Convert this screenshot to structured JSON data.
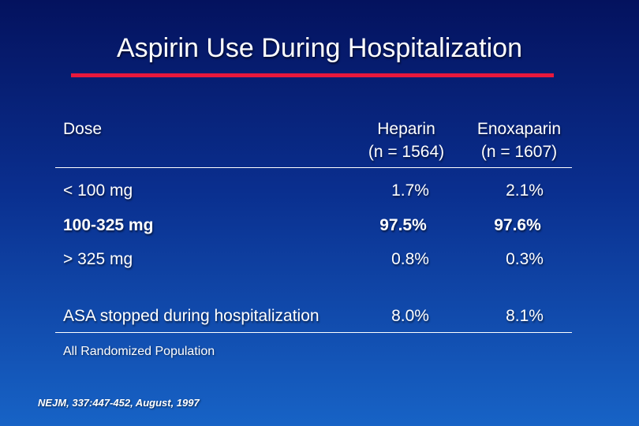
{
  "slide": {
    "title": "Aspirin Use During Hospitalization",
    "accent_color": "#e8183c"
  },
  "table": {
    "header": {
      "dose": "Dose",
      "heparin_name": "Heparin",
      "heparin_n": "(n = 1564)",
      "enoxaparin_name": "Enoxaparin",
      "enoxaparin_n": "(n = 1607)"
    },
    "rows": [
      {
        "dose": "< 100 mg",
        "heparin": "1.7%",
        "enoxaparin": "2.1%"
      },
      {
        "dose": "100-325 mg",
        "heparin": "97.5%",
        "enoxaparin": "97.6%"
      },
      {
        "dose": "> 325 mg",
        "heparin": "0.8%",
        "enoxaparin": "0.3%"
      },
      {
        "dose": "ASA stopped during hospitalization",
        "heparin": "8.0%",
        "enoxaparin": "8.1%"
      }
    ]
  },
  "footnote": "All Randomized Population",
  "citation": "NEJM, 337:447-452, August, 1997"
}
